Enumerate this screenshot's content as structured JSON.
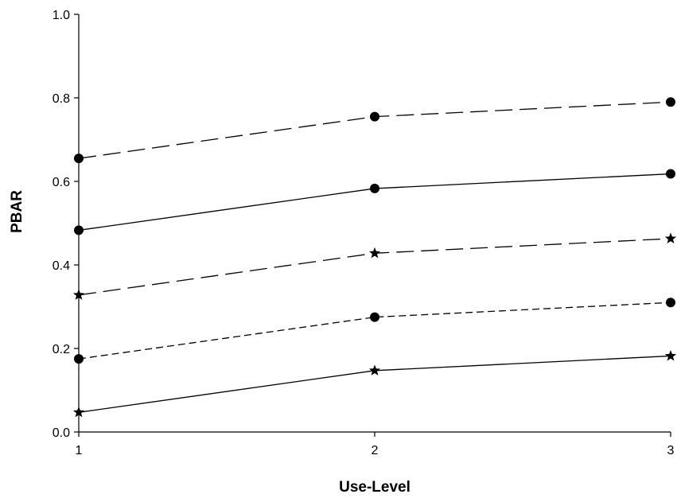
{
  "chart_data": {
    "type": "line",
    "title": "",
    "xlabel": "Use-Level",
    "ylabel": "PBAR",
    "x": [
      1,
      2,
      3
    ],
    "x_tick_labels": [
      "1",
      "2",
      "3"
    ],
    "y_tick_labels": [
      "0.0",
      "0.2",
      "0.4",
      "0.6",
      "0.8",
      "1.0"
    ],
    "xlim": [
      1,
      3
    ],
    "ylim": [
      0,
      1
    ],
    "grid": false,
    "legend": "none",
    "series": [
      {
        "values": [
          0.655,
          0.755,
          0.79
        ],
        "line_style": "long-dash",
        "marker": "circle",
        "color": "#000000"
      },
      {
        "values": [
          0.483,
          0.583,
          0.618
        ],
        "line_style": "solid",
        "marker": "circle",
        "color": "#000000"
      },
      {
        "values": [
          0.328,
          0.428,
          0.463
        ],
        "line_style": "long-dash",
        "marker": "star",
        "color": "#000000"
      },
      {
        "values": [
          0.175,
          0.275,
          0.31
        ],
        "line_style": "short-dash",
        "marker": "circle",
        "color": "#000000"
      },
      {
        "values": [
          0.047,
          0.147,
          0.182
        ],
        "line_style": "solid",
        "marker": "star",
        "color": "#000000"
      }
    ]
  }
}
